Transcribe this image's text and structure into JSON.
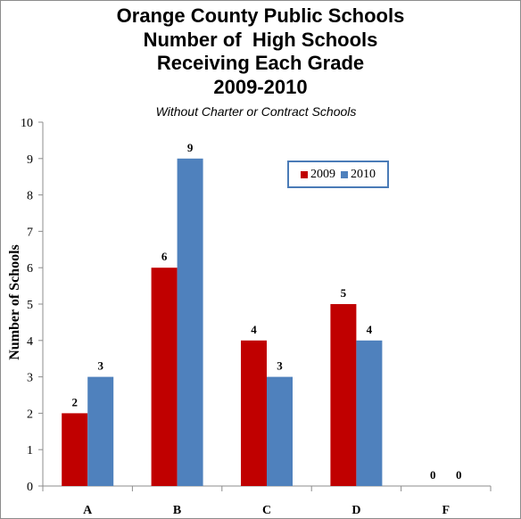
{
  "chart_data": {
    "type": "bar",
    "title_lines": [
      "Orange County Public Schools",
      "Number of  High Schools",
      "Receiving Each Grade",
      "2009-2010"
    ],
    "subtitle": "Without Charter or Contract Schools",
    "xlabel": "",
    "ylabel": "Number of Schools",
    "ylim": [
      0,
      10
    ],
    "yticks": [
      "0",
      "1",
      "2",
      "3",
      "4",
      "5",
      "6",
      "7",
      "8",
      "9",
      "10"
    ],
    "categories": [
      "A",
      "B",
      "C",
      "D",
      "F"
    ],
    "series": [
      {
        "name": "2009",
        "values": [
          2,
          6,
          4,
          5,
          0
        ],
        "color": "#c00000"
      },
      {
        "name": "2010",
        "values": [
          3,
          9,
          3,
          4,
          0
        ],
        "color": "#4f81bd"
      }
    ],
    "data_labels": true,
    "grid": false,
    "legend_position": "top-right"
  }
}
